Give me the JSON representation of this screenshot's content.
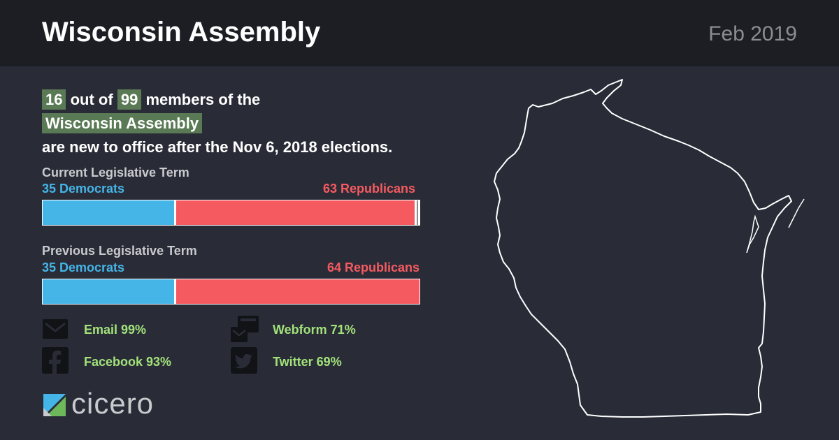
{
  "header": {
    "title": "Wisconsin Assembly",
    "date": "Feb 2019"
  },
  "headline": {
    "new_count": "16",
    "text_out_of": "out of",
    "total": "99",
    "text_members": "members of the",
    "body_name": "Wisconsin Assembly",
    "text_after": "are new to office after the Nov 6, 2018 elections."
  },
  "current_term": {
    "title": "Current Legislative Term",
    "dem_label": "35 Democrats",
    "rep_label": "63 Republicans",
    "dem_seats": 35,
    "rep_seats": 63,
    "vacant_seats": 1,
    "total_seats": 99
  },
  "previous_term": {
    "title": "Previous Legislative Term",
    "dem_label": "35 Democrats",
    "rep_label": "64 Republicans",
    "dem_seats": 35,
    "rep_seats": 64,
    "vacant_seats": 0,
    "total_seats": 99
  },
  "contacts": [
    {
      "label": "Email 99%",
      "icon": "envelope-icon"
    },
    {
      "label": "Webform 71%",
      "icon": "webform-icon"
    },
    {
      "label": "Facebook 93%",
      "icon": "facebook-icon"
    },
    {
      "label": "Twitter 69%",
      "icon": "twitter-icon"
    }
  ],
  "logo": {
    "text": "cicero"
  },
  "colors": {
    "background": "#292c37",
    "header": "#1c1e24",
    "highlight": "#5a7a55",
    "democrat": "#45b4e6",
    "republican": "#f55a60",
    "contact_text": "#a2e27a"
  }
}
